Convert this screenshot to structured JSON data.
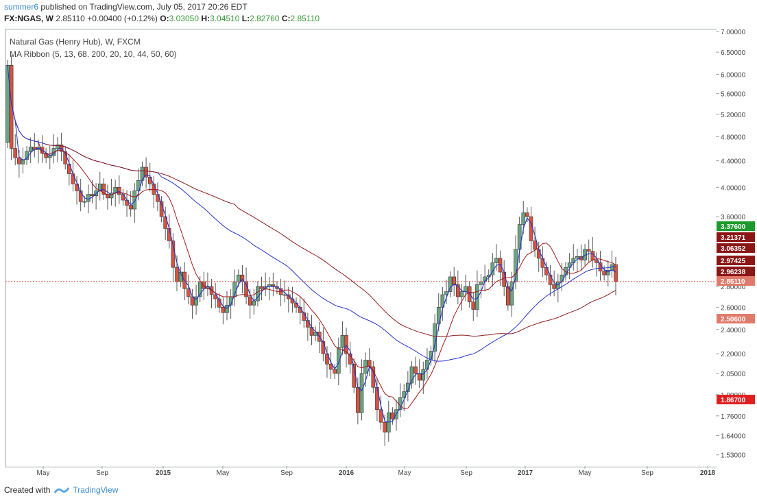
{
  "header": {
    "author": "summer6",
    "published_text": "published on TradingView.com, July 05, 2017 20:26 EDT",
    "symbol_line": "FX:NGAS, W",
    "last": "2.85110",
    "change": "+0.00400 (+0.12%)",
    "o_label": "O:",
    "o_val": "3.03050",
    "h_label": "H:",
    "h_val": "3.04510",
    "l_label": "L:",
    "l_val": "2.82760",
    "c_label": "C:",
    "c_val": "2.85110"
  },
  "legend": {
    "line1": "Natural Gas (Henry Hub), W, FXCM",
    "line2": "MA Ribbon (5, 13, 68, 200, 20, 10, 44, 50, 60)"
  },
  "footer": {
    "created_with": "Created with",
    "brand": "TradingView"
  },
  "colors": {
    "up": "#6ba583",
    "down": "#d75442",
    "ma_fast": "#2434c8",
    "ma_slow": "#a01818",
    "grid_border": "#9aa4ad"
  },
  "chart_data": {
    "type": "candlestick",
    "scale": "log",
    "ylim": [
      1.47,
      7.0
    ],
    "y_ticks": [
      "7.00000",
      "6.50000",
      "6.00000",
      "5.60000",
      "5.20000",
      "4.80000",
      "4.40000",
      "4.00000",
      "3.60000",
      "2.80000",
      "2.60000",
      "2.40000",
      "2.20000",
      "2.05000",
      "1.90000",
      "1.76000",
      "1.64000",
      "1.53000"
    ],
    "x_ticks": [
      "May",
      "Sep",
      "2015",
      "May",
      "Sep",
      "2016",
      "May",
      "Sep",
      "2017",
      "May",
      "Sep",
      "2018"
    ],
    "price_labels": [
      {
        "label": "3.37600",
        "color": "#1c9a2c"
      },
      {
        "label": "3.21371",
        "color": "#8b1616"
      },
      {
        "label": "3.06352",
        "color": "#8b1616"
      },
      {
        "label": "2.97425",
        "color": "#8b1616"
      },
      {
        "label": "2.96238",
        "color": "#8b1616"
      },
      {
        "label": "2.85110",
        "color": "#e07a6a"
      },
      {
        "label": "2.50600",
        "color": "#e07a6a"
      },
      {
        "label": "1.86700",
        "color": "#e02020"
      }
    ],
    "last_price": 2.8511,
    "closes": [
      6.2,
      4.6,
      4.45,
      4.35,
      4.42,
      4.55,
      4.62,
      4.58,
      4.62,
      4.52,
      4.45,
      4.48,
      4.6,
      4.66,
      4.55,
      4.35,
      4.2,
      4.05,
      3.95,
      3.8,
      3.8,
      3.9,
      3.88,
      3.95,
      4.05,
      3.9,
      3.85,
      3.92,
      4.0,
      3.9,
      3.82,
      3.75,
      3.7,
      3.95,
      4.1,
      4.3,
      4.15,
      4.05,
      3.9,
      3.8,
      3.6,
      3.45,
      3.3,
      3.0,
      2.85,
      2.95,
      2.78,
      2.7,
      2.62,
      2.7,
      2.85,
      2.78,
      2.8,
      2.72,
      2.68,
      2.6,
      2.55,
      2.62,
      2.7,
      2.85,
      2.92,
      2.85,
      2.7,
      2.62,
      2.66,
      2.8,
      2.78,
      2.8,
      2.82,
      2.8,
      2.78,
      2.72,
      2.72,
      2.68,
      2.64,
      2.6,
      2.55,
      2.48,
      2.42,
      2.35,
      2.38,
      2.3,
      2.2,
      2.12,
      2.08,
      2.05,
      2.25,
      2.35,
      2.2,
      2.12,
      1.95,
      1.78,
      2.05,
      2.15,
      2.1,
      1.95,
      1.8,
      1.72,
      1.66,
      1.78,
      1.74,
      1.8,
      1.88,
      1.92,
      1.98,
      2.1,
      2.05,
      2.0,
      2.08,
      2.15,
      2.22,
      2.45,
      2.6,
      2.72,
      2.75,
      2.9,
      2.82,
      2.7,
      2.75,
      2.8,
      2.65,
      2.58,
      2.82,
      2.85,
      2.9,
      2.92,
      3.05,
      3.1,
      2.95,
      2.8,
      2.62,
      2.85,
      3.2,
      3.5,
      3.65,
      3.6,
      3.3,
      3.2,
      3.1,
      3.0,
      2.92,
      2.82,
      2.78,
      2.85,
      2.92,
      3.0,
      3.05,
      3.1,
      3.12,
      3.08,
      3.2,
      3.18,
      3.08,
      3.05,
      2.96,
      2.92,
      2.97,
      3.03,
      2.85
    ],
    "series": [
      {
        "name": "MA 5",
        "values_note": "fast moving average"
      },
      {
        "name": "MA 200",
        "values_note": "slow moving average"
      }
    ]
  }
}
